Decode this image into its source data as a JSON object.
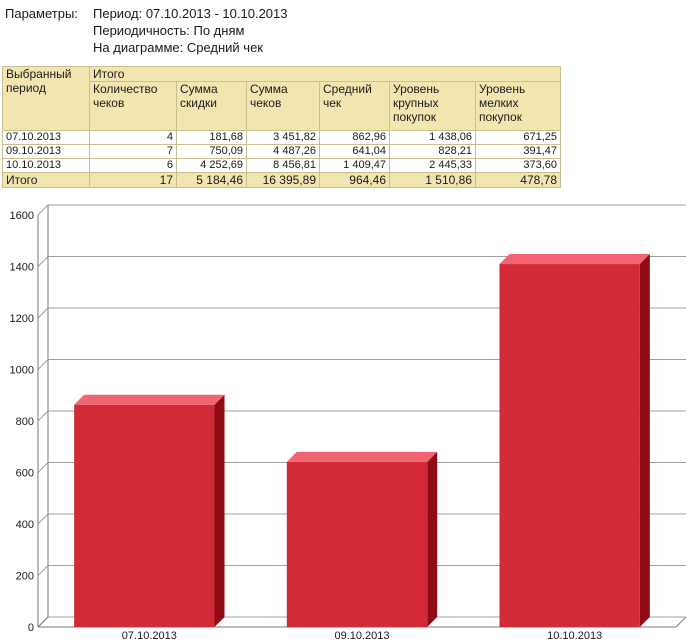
{
  "params": {
    "label": "Параметры:",
    "period": "Период: 07.10.2013 - 10.10.2013",
    "periodicity": "Периодичность: По дням",
    "diagram": "На диаграмме: Средний чек"
  },
  "table": {
    "group_header": "Выбранный период",
    "totals_group_header": "Итого",
    "columns": [
      "Количество чеков",
      "Сумма скидки",
      "Сумма чеков",
      "Средний чек",
      "Уровень крупных покупок",
      "Уровень мелких покупок"
    ],
    "rows": [
      {
        "date": "07.10.2013",
        "values": [
          "4",
          "181,68",
          "3 451,82",
          "862,96",
          "1 438,06",
          "671,25"
        ]
      },
      {
        "date": "09.10.2013",
        "values": [
          "7",
          "750,09",
          "4 487,26",
          "641,04",
          "828,21",
          "391,47"
        ]
      },
      {
        "date": "10.10.2013",
        "values": [
          "6",
          "4 252,69",
          "8 456,81",
          "1 409,47",
          "2 445,33",
          "373,60"
        ]
      }
    ],
    "total": {
      "label": "Итого",
      "values": [
        "17",
        "5 184,46",
        "16 395,89",
        "964,46",
        "1 510,86",
        "478,78"
      ]
    }
  },
  "chart_data": {
    "type": "bar",
    "categories": [
      "07.10.2013",
      "09.10.2013",
      "10.10.2013"
    ],
    "values": [
      862.96,
      641.04,
      1409.47
    ],
    "ylim": [
      0,
      1600
    ],
    "yticks": [
      0,
      200,
      400,
      600,
      800,
      1000,
      1200,
      1400,
      1600
    ],
    "grid": true,
    "colors": {
      "front": "#d22a36",
      "top": "#f26470",
      "side": "#8e0d14",
      "grid": "#a0a0a0",
      "axis": "#7a7a7a"
    }
  }
}
